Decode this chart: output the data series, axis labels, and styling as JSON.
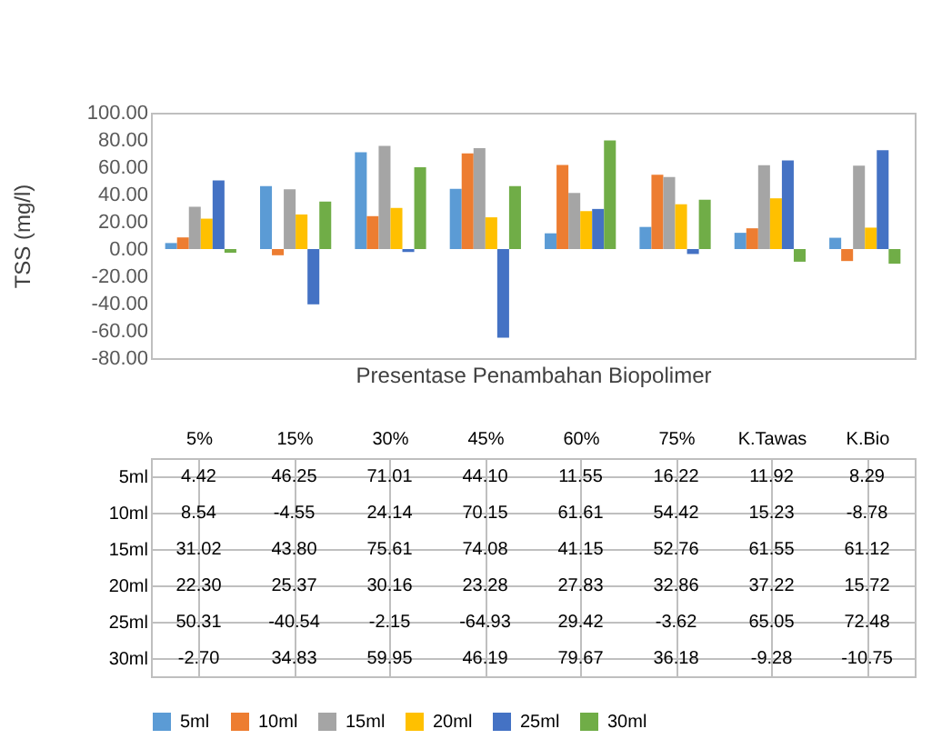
{
  "chart_data": {
    "type": "bar",
    "xlabel": "Presentase Penambahan Biopolimer",
    "ylabel": "TSS (mg/l)",
    "categories": [
      "5%",
      "15%",
      "30%",
      "45%",
      "60%",
      "75%",
      "K.Tawas",
      "K.Bio"
    ],
    "series": [
      {
        "name": "5ml",
        "color": "#5b9bd5",
        "values": [
          4.42,
          46.25,
          71.01,
          44.1,
          11.55,
          16.22,
          11.92,
          8.29
        ],
        "value_labels": [
          "4.42",
          "46.25",
          "71.01",
          "44.10",
          "11.55",
          "16.22",
          "11.92",
          "8.29"
        ]
      },
      {
        "name": "10ml",
        "color": "#ed7d31",
        "values": [
          8.54,
          -4.55,
          24.14,
          70.15,
          61.61,
          54.42,
          15.23,
          -8.78
        ],
        "value_labels": [
          "8.54",
          "-4.55",
          "24.14",
          "70.15",
          "61.61",
          "54.42",
          "15.23",
          "-8.78"
        ]
      },
      {
        "name": "15ml",
        "color": "#a5a5a5",
        "values": [
          31.02,
          43.8,
          75.61,
          74.08,
          41.15,
          52.76,
          61.55,
          61.12
        ],
        "value_labels": [
          "31.02",
          "43.80",
          "75.61",
          "74.08",
          "41.15",
          "52.76",
          "61.55",
          "61.12"
        ]
      },
      {
        "name": "20ml",
        "color": "#ffc000",
        "values": [
          22.3,
          25.37,
          30.16,
          23.28,
          27.83,
          32.86,
          37.22,
          15.72
        ],
        "value_labels": [
          "22.30",
          "25.37",
          "30.16",
          "23.28",
          "27.83",
          "32.86",
          "37.22",
          "15.72"
        ]
      },
      {
        "name": "25ml",
        "color": "#4472c4",
        "values": [
          50.31,
          -40.54,
          -2.15,
          -64.93,
          29.42,
          -3.62,
          65.05,
          72.48
        ],
        "value_labels": [
          "50.31",
          "-40.54",
          "-2.15",
          "-64.93",
          "29.42",
          "-3.62",
          "65.05",
          "72.48"
        ]
      },
      {
        "name": "30ml",
        "color": "#70ad47",
        "values": [
          -2.7,
          34.83,
          59.95,
          46.19,
          79.67,
          36.18,
          -9.28,
          -10.75
        ],
        "value_labels": [
          "-2.70",
          "34.83",
          "59.95",
          "46.19",
          "79.67",
          "36.18",
          "-9.28",
          "-10.75"
        ]
      }
    ],
    "ylim": [
      -80,
      100
    ],
    "yticks": [
      {
        "value": -80,
        "label": "-80.00"
      },
      {
        "value": -60,
        "label": "-60.00"
      },
      {
        "value": -40,
        "label": "-40.00"
      },
      {
        "value": -20,
        "label": "-20.00"
      },
      {
        "value": 0,
        "label": "0.00"
      },
      {
        "value": 20,
        "label": "20.00"
      },
      {
        "value": 40,
        "label": "40.00"
      },
      {
        "value": 60,
        "label": "60.00"
      },
      {
        "value": 80,
        "label": "80.00"
      },
      {
        "value": 100,
        "label": "100.00"
      }
    ],
    "grid": false,
    "legend": "bottom",
    "tick_labels": "y"
  }
}
